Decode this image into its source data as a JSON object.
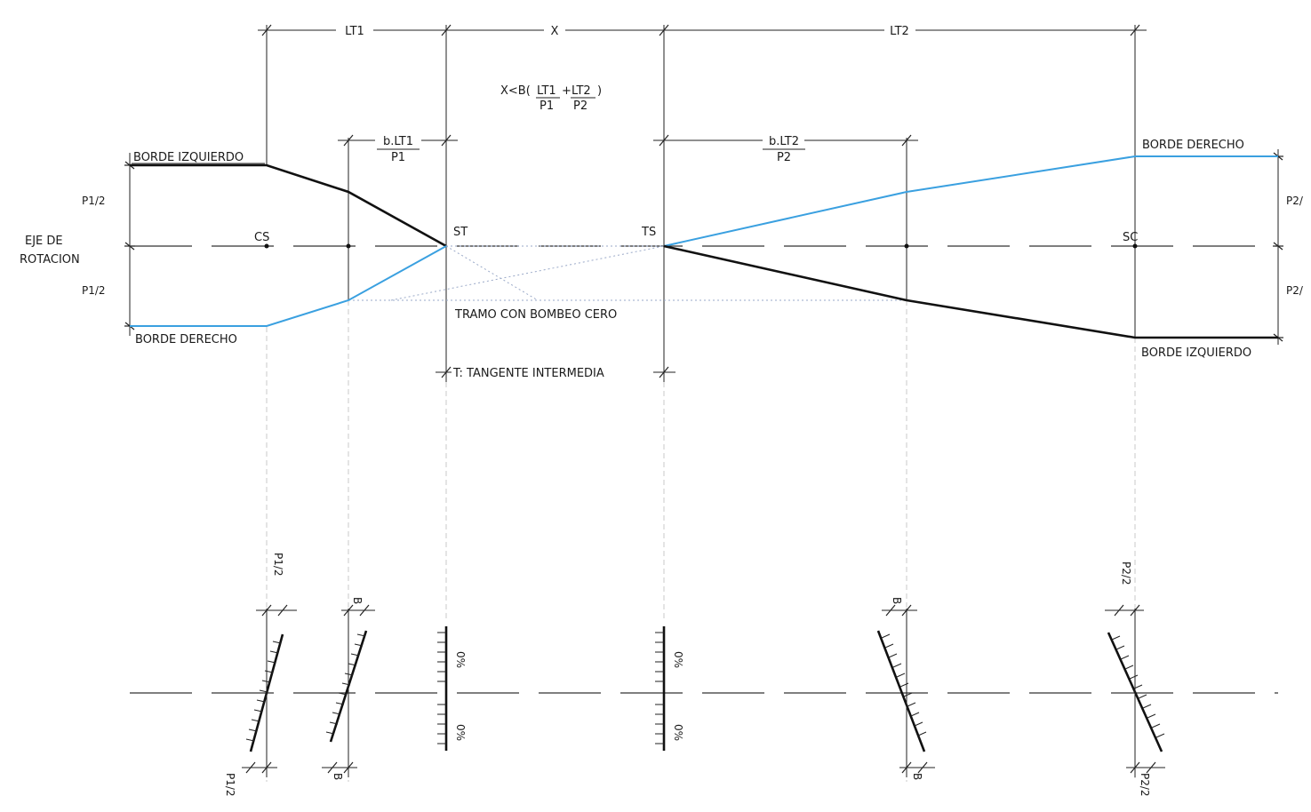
{
  "dimensions": {
    "lt1": "LT1",
    "x": "X",
    "lt2": "LT2",
    "b_lt1_num": "b.LT1",
    "b_lt1_den": "P1",
    "b_lt2_num": "b.LT2",
    "b_lt2_den": "P2",
    "tangent": "T: TANGENTE INTERMEDIA"
  },
  "formula": {
    "prefix": "X<B(",
    "lt1": "LT1",
    "plus": "+",
    "lt2": "LT2",
    "close": ")",
    "p1": "P1",
    "p2": "P2"
  },
  "labels": {
    "borde_izq_left": "BORDE IZQUIERDO",
    "borde_der_left": "BORDE DERECHO",
    "borde_der_right": "BORDE DERECHO",
    "borde_izq_right": "BORDE IZQUIERDO",
    "eje_line1": "EJE DE",
    "eje_line2": "ROTACION",
    "p1_half_top": "P1/2",
    "p1_half_bottom": "P1/2",
    "p2_half_top": "P2/",
    "p2_half_bottom": "P2/",
    "cs": "CS",
    "st": "ST",
    "ts": "TS",
    "sc": "SC",
    "tramo": "TRAMO CON BOMBEO CERO"
  },
  "sections": {
    "s1_top": "P1/2",
    "s1_bottom": "P1/2",
    "s2_top": "B",
    "s2_bottom": "B",
    "s3_top": "0%",
    "s3_bottom": "0%",
    "s4_top": "0%",
    "s4_bottom": "0%",
    "s5_top": "B",
    "s5_bottom": "B",
    "s6_top": "P2/2",
    "s6_bottom": "P2/2"
  },
  "colors": {
    "left_edge": "#111111",
    "right_edge": "#3aa0e0"
  }
}
